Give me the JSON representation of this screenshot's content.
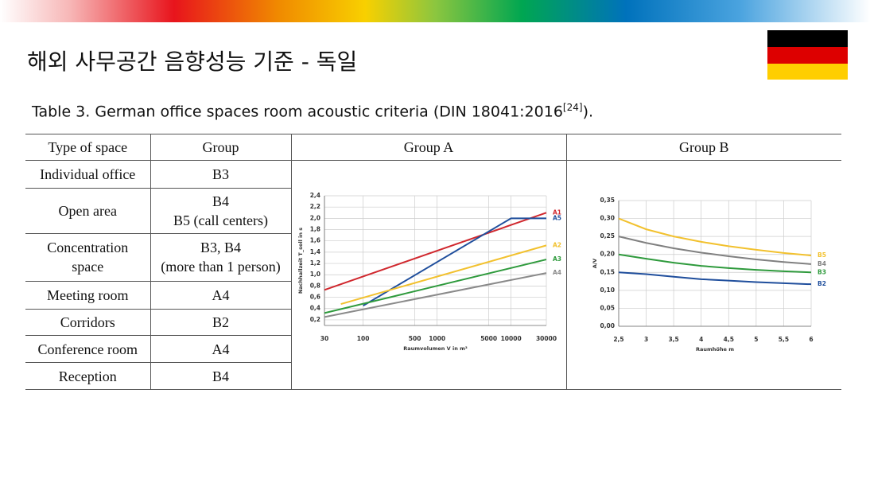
{
  "header": {
    "title": "해외 사무공간 음향성능 기준 - 독일"
  },
  "caption": {
    "text": "Table 3. German office spaces room acoustic criteria (DIN 18041:2016",
    "ref": "[24]",
    "end": ")."
  },
  "table": {
    "columns": [
      "Type of space",
      "Group",
      "Group A",
      "Group B"
    ],
    "rows": [
      [
        "Individual office",
        "B3"
      ],
      [
        "Open area",
        "B4\nB5 (call centers)"
      ],
      [
        "Concentration space",
        "B3, B4\n(more than 1 person)"
      ],
      [
        "Meeting room",
        "A4"
      ],
      [
        "Corridors",
        "B2"
      ],
      [
        "Conference room",
        "A4"
      ],
      [
        "Reception",
        "B4"
      ]
    ]
  },
  "chart_data": [
    {
      "type": "line",
      "xlabel": "Raumvolumen V in m³",
      "ylabel": "Nachhallzeit T_soll in s",
      "xlog": true,
      "grid": true,
      "xlim": [
        30,
        30000
      ],
      "xticks": [
        30,
        100,
        500,
        1000,
        5000,
        10000,
        30000
      ],
      "ylim": [
        0.1,
        2.4
      ],
      "yticks": [
        {
          "value": 0.2,
          "label": "0,2"
        },
        {
          "value": 0.4,
          "label": "0,4"
        },
        {
          "value": 0.6,
          "label": "0,6"
        },
        {
          "value": 0.8,
          "label": "0,8"
        },
        {
          "value": 1.0,
          "label": "1,0"
        },
        {
          "value": 1.2,
          "label": "1,2"
        },
        {
          "value": 1.4,
          "label": "1,4"
        },
        {
          "value": 1.6,
          "label": "1,6"
        },
        {
          "value": 1.8,
          "label": "1,8"
        },
        {
          "value": 2.0,
          "label": "2,0"
        },
        {
          "value": 2.2,
          "label": "2,2"
        },
        {
          "value": 2.4,
          "label": "2,4"
        }
      ],
      "series": [
        {
          "name": "A1",
          "color": "#d0282e",
          "x": [
            30,
            30000
          ],
          "values": [
            0.73,
            2.1
          ]
        },
        {
          "name": "A5",
          "color": "#1f4e9c",
          "x": [
            100,
            10000,
            30000
          ],
          "values": [
            0.45,
            2.0,
            2.0
          ]
        },
        {
          "name": "A2",
          "color": "#f2c12e",
          "x": [
            50,
            30000
          ],
          "values": [
            0.48,
            1.52
          ]
        },
        {
          "name": "A3",
          "color": "#2e9a3c",
          "x": [
            30,
            30000
          ],
          "values": [
            0.32,
            1.27
          ]
        },
        {
          "name": "A4",
          "color": "#8a8a8a",
          "x": [
            30,
            30000
          ],
          "values": [
            0.25,
            1.03
          ]
        }
      ]
    },
    {
      "type": "line",
      "xlabel": "Raumhöhe m",
      "ylabel": "A/V",
      "xlog": false,
      "grid": true,
      "xlim": [
        2.5,
        6
      ],
      "xticks": [
        {
          "value": 2.5,
          "label": "2,5"
        },
        3,
        {
          "value": 3.5,
          "label": "3,5"
        },
        4,
        {
          "value": 4.5,
          "label": "4,5"
        },
        5,
        {
          "value": 5.5,
          "label": "5,5"
        },
        6
      ],
      "ylim": [
        0,
        0.35
      ],
      "yticks": [
        {
          "value": 0,
          "label": "0,00"
        },
        {
          "value": 0.05,
          "label": "0,05"
        },
        {
          "value": 0.1,
          "label": "0,10"
        },
        {
          "value": 0.15,
          "label": "0,15"
        },
        {
          "value": 0.2,
          "label": "0,20"
        },
        {
          "value": 0.25,
          "label": "0,25"
        },
        {
          "value": 0.3,
          "label": "0,30"
        },
        {
          "value": 0.35,
          "label": "0,35"
        }
      ],
      "series": [
        {
          "name": "B5",
          "color": "#f2c12e",
          "x": [
            2.5,
            3,
            3.5,
            4,
            4.5,
            5,
            5.5,
            6
          ],
          "values": [
            0.3,
            0.27,
            0.25,
            0.235,
            0.223,
            0.213,
            0.204,
            0.197
          ]
        },
        {
          "name": "B4",
          "color": "#808080",
          "x": [
            2.5,
            3,
            3.5,
            4,
            4.5,
            5,
            5.5,
            6
          ],
          "values": [
            0.25,
            0.232,
            0.217,
            0.205,
            0.195,
            0.186,
            0.179,
            0.173
          ]
        },
        {
          "name": "B3",
          "color": "#2e9a3c",
          "x": [
            2.5,
            3,
            3.5,
            4,
            4.5,
            5,
            5.5,
            6
          ],
          "values": [
            0.2,
            0.188,
            0.177,
            0.168,
            0.162,
            0.157,
            0.153,
            0.15
          ]
        },
        {
          "name": "B2",
          "color": "#1f4e9c",
          "x": [
            2.5,
            3,
            3.5,
            4,
            4.5,
            5,
            5.5,
            6
          ],
          "values": [
            0.15,
            0.145,
            0.138,
            0.131,
            0.127,
            0.123,
            0.12,
            0.117
          ]
        }
      ]
    }
  ]
}
